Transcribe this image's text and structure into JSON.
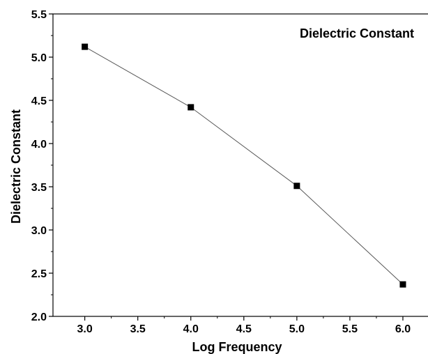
{
  "chart_data": {
    "type": "line",
    "title": "",
    "xlabel": "Log Frequency",
    "ylabel": "Dielectric Constant",
    "xlim": [
      2.7,
      6.25
    ],
    "ylim": [
      2.0,
      5.5
    ],
    "x_ticks": [
      "3.0",
      "3.5",
      "4.0",
      "4.5",
      "5.0",
      "5.5",
      "6.0"
    ],
    "y_ticks": [
      "2.0",
      "2.5",
      "3.0",
      "3.5",
      "4.0",
      "4.5",
      "5.0",
      "5.5"
    ],
    "grid": false,
    "legend": {
      "position": "top-right",
      "entries": [
        "Dielectric Constant"
      ]
    },
    "series": [
      {
        "name": "Dielectric Constant",
        "marker": "square",
        "color": "#000000",
        "x": [
          3.0,
          4.0,
          5.0,
          6.0
        ],
        "y": [
          5.12,
          4.42,
          3.51,
          2.37
        ]
      }
    ]
  }
}
